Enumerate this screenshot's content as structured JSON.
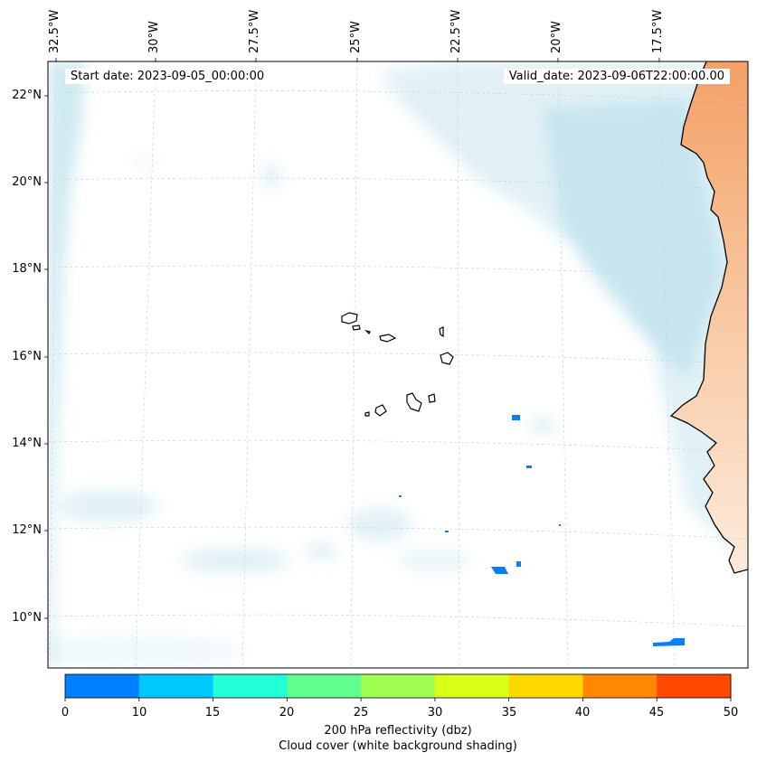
{
  "map": {
    "start_date": "Start date: 2023-09-05_00:00:00",
    "valid_date": "Valid_date: 2023-09-06T22:00:00.00",
    "lon_labels": [
      "32.5°W",
      "30°W",
      "27.5°W",
      "25°W",
      "22.5°W",
      "20°W",
      "17.5°W"
    ],
    "lat_labels": [
      "22°N",
      "20°N",
      "18°N",
      "16°N",
      "14°N",
      "12°N",
      "10°N"
    ]
  },
  "colorbar": {
    "ticks": [
      "0",
      "10",
      "15",
      "20",
      "25",
      "30",
      "35",
      "40",
      "45",
      "50"
    ],
    "colors": [
      "#0080ff",
      "#00c8ff",
      "#20ffd8",
      "#60ff90",
      "#a0ff50",
      "#d8ff18",
      "#ffd800",
      "#ff8800",
      "#ff4800"
    ],
    "title_line1": "200 hPa reflectivity (dbz)",
    "title_line2": "Cloud cover (white background shading)"
  },
  "colors": {
    "cloud": "#a8d8e6",
    "land": "#f6a36a",
    "coast": "#000000",
    "echo": "#0a7ff5"
  }
}
